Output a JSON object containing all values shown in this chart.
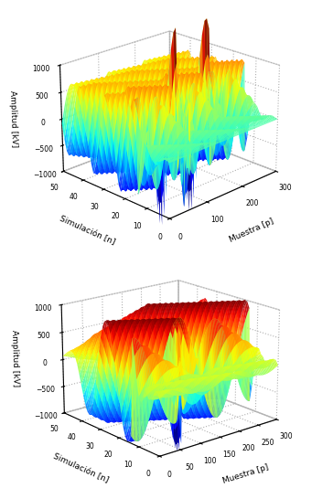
{
  "plot1": {
    "xlabel": "Muestra [p]",
    "ylabel": "Simulación [n]",
    "zlabel": "Amplitud [kV]",
    "xticks": [
      0,
      100,
      200,
      300
    ],
    "yticks": [
      0,
      10,
      20,
      30,
      40,
      50
    ],
    "zticks": [
      -1000,
      -500,
      0,
      500,
      1000
    ],
    "elev": 22,
    "azim": 225
  },
  "plot2": {
    "xlabel": "Muestra [p]",
    "ylabel": "Simulación [n]",
    "zlabel": "Amplitud [kV]",
    "xticks": [
      0,
      50,
      100,
      150,
      200,
      250,
      300
    ],
    "yticks": [
      0,
      10,
      20,
      30,
      40,
      50
    ],
    "zticks": [
      -1000,
      -500,
      0,
      500,
      1000
    ],
    "elev": 18,
    "azim": 230
  },
  "linewidth": 0.2,
  "alpha": 0.92,
  "cmap": "jet",
  "N_sim": 51,
  "N_samp": 300
}
